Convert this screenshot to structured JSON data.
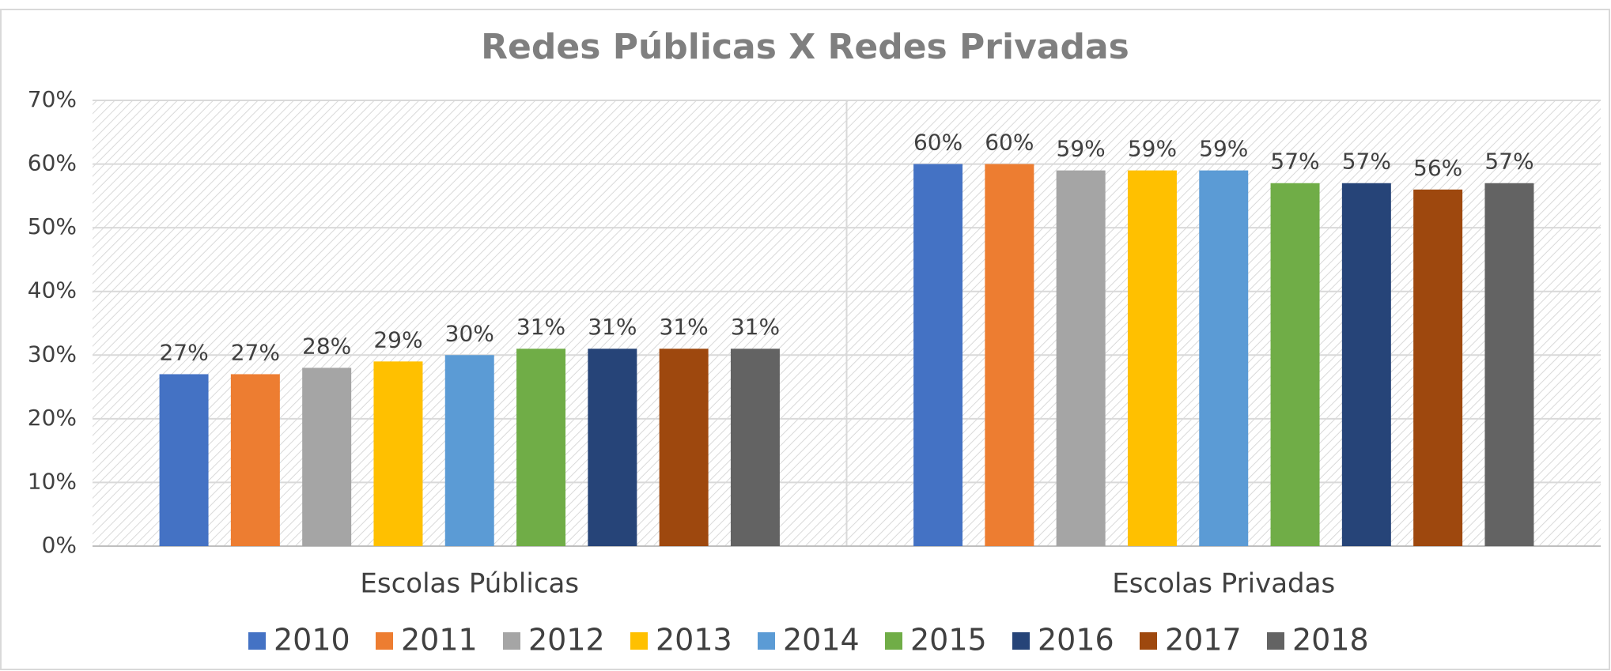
{
  "chart_data": {
    "type": "bar",
    "title": "Redes Públicas X Redes Privadas",
    "categories": [
      "Escolas Públicas",
      "Escolas Privadas"
    ],
    "series": [
      {
        "name": "2010",
        "color": "#4472c4",
        "values": [
          27,
          60
        ],
        "value_labels": [
          "27%",
          "60%"
        ]
      },
      {
        "name": "2011",
        "color": "#ed7d31",
        "values": [
          27,
          60
        ],
        "value_labels": [
          "27%",
          "60%"
        ]
      },
      {
        "name": "2012",
        "color": "#a5a5a5",
        "values": [
          28,
          59
        ],
        "value_labels": [
          "28%",
          "59%"
        ]
      },
      {
        "name": "2013",
        "color": "#ffc000",
        "values": [
          29,
          59
        ],
        "value_labels": [
          "29%",
          "59%"
        ]
      },
      {
        "name": "2014",
        "color": "#5b9bd5",
        "values": [
          30,
          59
        ],
        "value_labels": [
          "30%",
          "59%"
        ]
      },
      {
        "name": "2015",
        "color": "#70ad47",
        "values": [
          31,
          57
        ],
        "value_labels": [
          "31%",
          "57%"
        ]
      },
      {
        "name": "2016",
        "color": "#264478",
        "values": [
          31,
          57
        ],
        "value_labels": [
          "31%",
          "57%"
        ]
      },
      {
        "name": "2017",
        "color": "#9e480e",
        "values": [
          31,
          56
        ],
        "value_labels": [
          "31%",
          "56%"
        ]
      },
      {
        "name": "2018",
        "color": "#636363",
        "values": [
          31,
          57
        ],
        "value_labels": [
          "31%",
          "57%"
        ]
      }
    ],
    "ylim": [
      0,
      70
    ],
    "yticks": [
      {
        "value": 0,
        "label": "0%"
      },
      {
        "value": 10,
        "label": "10%"
      },
      {
        "value": 20,
        "label": "20%"
      },
      {
        "value": 30,
        "label": "30%"
      },
      {
        "value": 40,
        "label": "40%"
      },
      {
        "value": 50,
        "label": "50%"
      },
      {
        "value": 60,
        "label": "60%"
      },
      {
        "value": 70,
        "label": "70%"
      }
    ],
    "grid": true,
    "legend": "bottom"
  }
}
